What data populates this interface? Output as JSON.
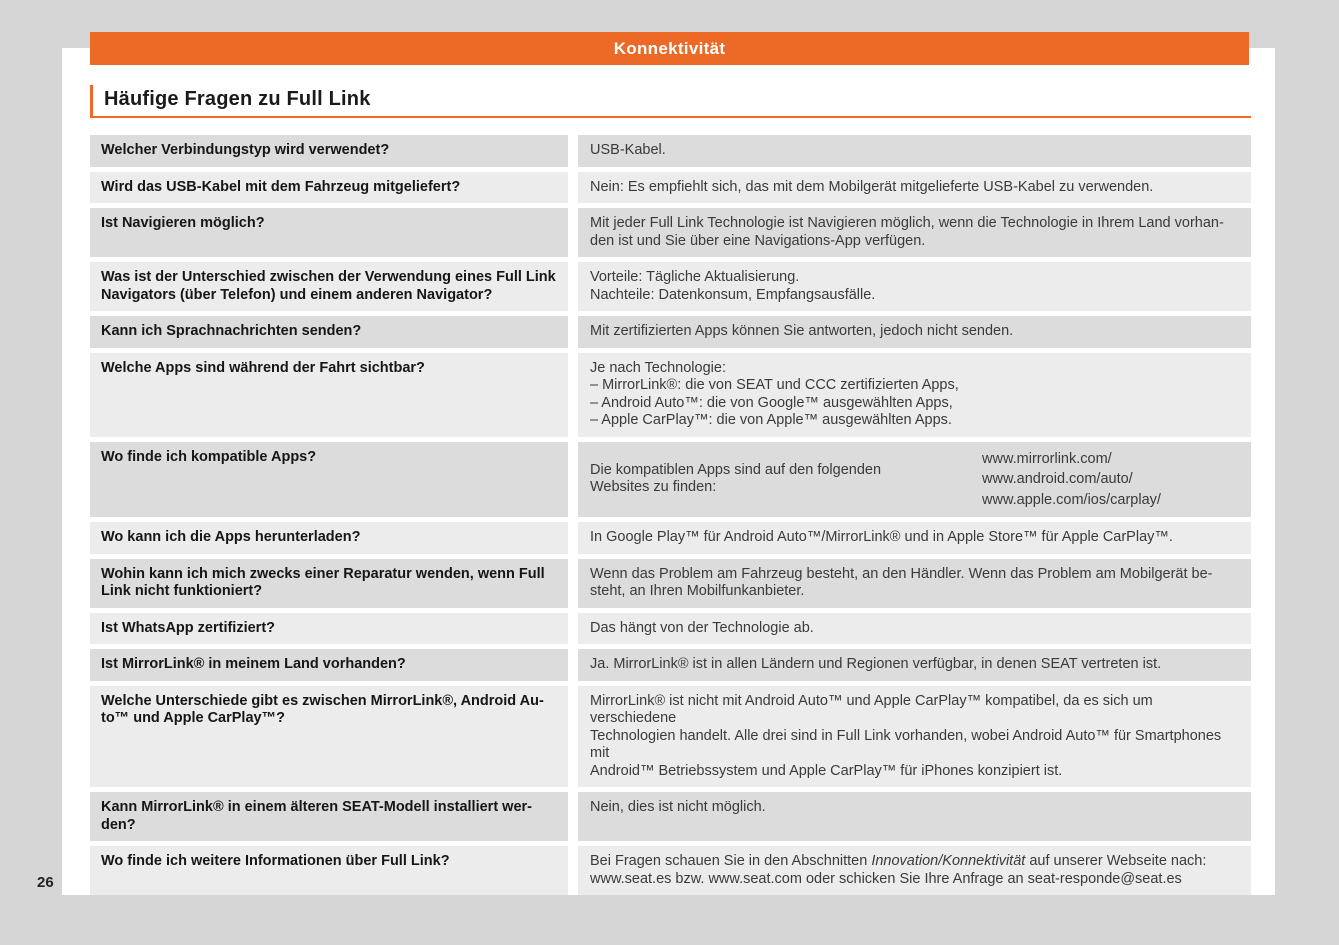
{
  "header": {
    "band_label": "Konnektivität"
  },
  "section": {
    "title": "Häufige Fragen zu Full Link"
  },
  "footer": {
    "page_number": "26"
  },
  "colors": {
    "accent_orange": "#ec6a25",
    "row_shade_dark": "#dcdcdc",
    "row_shade_light": "#ececec",
    "page_background": "#ffffff",
    "surround_background": "#d6d6d6"
  },
  "faq": {
    "rows": [
      {
        "q": "Welcher Verbindungstyp wird verwendet?",
        "a": "USB-Kabel."
      },
      {
        "q": "Wird das USB-Kabel mit dem Fahrzeug mitgeliefert?",
        "a": "Nein: Es empfiehlt sich, das mit dem Mobilgerät mitgelieferte USB-Kabel zu verwenden."
      },
      {
        "q": "Ist Navigieren möglich?",
        "a": "Mit jeder Full Link Technologie ist Navigieren möglich, wenn die Technologie in Ihrem Land vorhan-\nden ist und Sie über eine Navigations-App verfügen."
      },
      {
        "q": "Was ist der Unterschied zwischen der Verwendung eines Full Link\nNavigators (über Telefon) und einem anderen Navigator?",
        "a": "Vorteile: Tägliche Aktualisierung.\nNachteile: Datenkonsum, Empfangsausfälle."
      },
      {
        "q": "Kann ich Sprachnachrichten senden?",
        "a": "Mit zertifizierten Apps können Sie antworten, jedoch nicht senden."
      },
      {
        "q": "Welche Apps sind während der Fahrt sichtbar?",
        "a": "Je nach Technologie:\n– MirrorLink®: die von SEAT und CCC zertifizierten Apps,\n– Android Auto™: die von Google™ ausgewählten Apps,\n– Apple CarPlay™: die von Apple™ ausgewählten Apps."
      },
      {
        "q": "Wo finde ich kompatible Apps?",
        "a_intro": "Die kompatiblen Apps sind auf den folgenden\nWebsites zu finden:",
        "a_links": "www.mirrorlink.com/\nwww.android.com/auto/\nwww.apple.com/ios/carplay/"
      },
      {
        "q": "Wo kann ich die Apps herunterladen?",
        "a": "In Google Play™ für Android Auto™/MirrorLink® und in Apple Store™ für Apple CarPlay™."
      },
      {
        "q": "Wohin kann ich mich zwecks einer Reparatur wenden, wenn Full\nLink nicht funktioniert?",
        "a": "Wenn das Problem am Fahrzeug besteht, an den Händler. Wenn das Problem am Mobilgerät be-\nsteht, an Ihren Mobilfunkanbieter."
      },
      {
        "q": "Ist WhatsApp zertifiziert?",
        "a": "Das hängt von der Technologie ab."
      },
      {
        "q": "Ist MirrorLink® in meinem Land vorhanden?",
        "a": "Ja. MirrorLink® ist in allen Ländern und Regionen verfügbar, in denen SEAT vertreten ist."
      },
      {
        "q": "Welche Unterschiede gibt es zwischen MirrorLink®, Android Au-\nto™ und Apple CarPlay™?",
        "a": "MirrorLink® ist nicht mit Android Auto™ und Apple CarPlay™ kompatibel, da es sich um verschiedene\nTechnologien handelt. Alle drei sind in Full Link vorhanden, wobei Android Auto™ für Smartphones mit\nAndroid™ Betriebssystem und Apple CarPlay™ für iPhones konzipiert ist."
      },
      {
        "q": "Kann MirrorLink® in einem älteren SEAT-Modell installiert wer-\nden?",
        "a": "Nein, dies ist nicht möglich."
      },
      {
        "q": "Wo finde ich weitere Informationen über Full Link?",
        "a_pre": "Bei Fragen schauen Sie in den Abschnitten ",
        "a_italic": "Innovation/Konnektivität",
        "a_post": " auf unserer Webseite nach:\nwww.seat.es bzw. www.seat.com oder schicken Sie Ihre Anfrage an seat-responde@seat.es"
      }
    ]
  }
}
